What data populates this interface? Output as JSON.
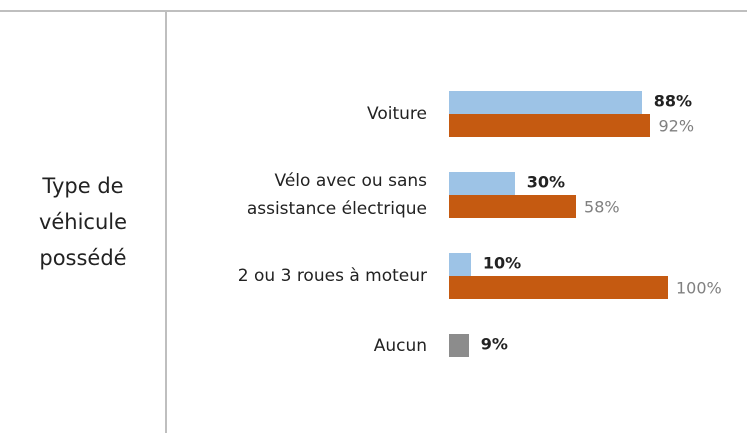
{
  "chart_data": {
    "type": "bar",
    "orientation": "horizontal",
    "ylabel": "Type de\nvéhicule\npossédé",
    "categories": [
      "Voiture",
      "Vélo avec ou sans\nassistance électrique",
      "2 ou 3 roues à moteur",
      "Aucun"
    ],
    "series": [
      {
        "color": "#9dc3e6",
        "values": [
          88,
          30,
          10,
          null
        ],
        "value_labels": [
          "88%",
          "30%",
          "10%",
          null
        ],
        "label_color": "#222222",
        "label_bold": true
      },
      {
        "color": "#c55a11",
        "values": [
          92,
          58,
          100,
          null
        ],
        "value_labels": [
          "92%",
          "58%",
          "100%",
          null
        ],
        "label_color": "#808080",
        "label_bold": false
      },
      {
        "color": "#8c8c8c",
        "values": [
          null,
          null,
          null,
          9
        ],
        "value_labels": [
          null,
          null,
          null,
          "9%"
        ],
        "label_color": "#222222",
        "label_bold": true
      }
    ]
  }
}
